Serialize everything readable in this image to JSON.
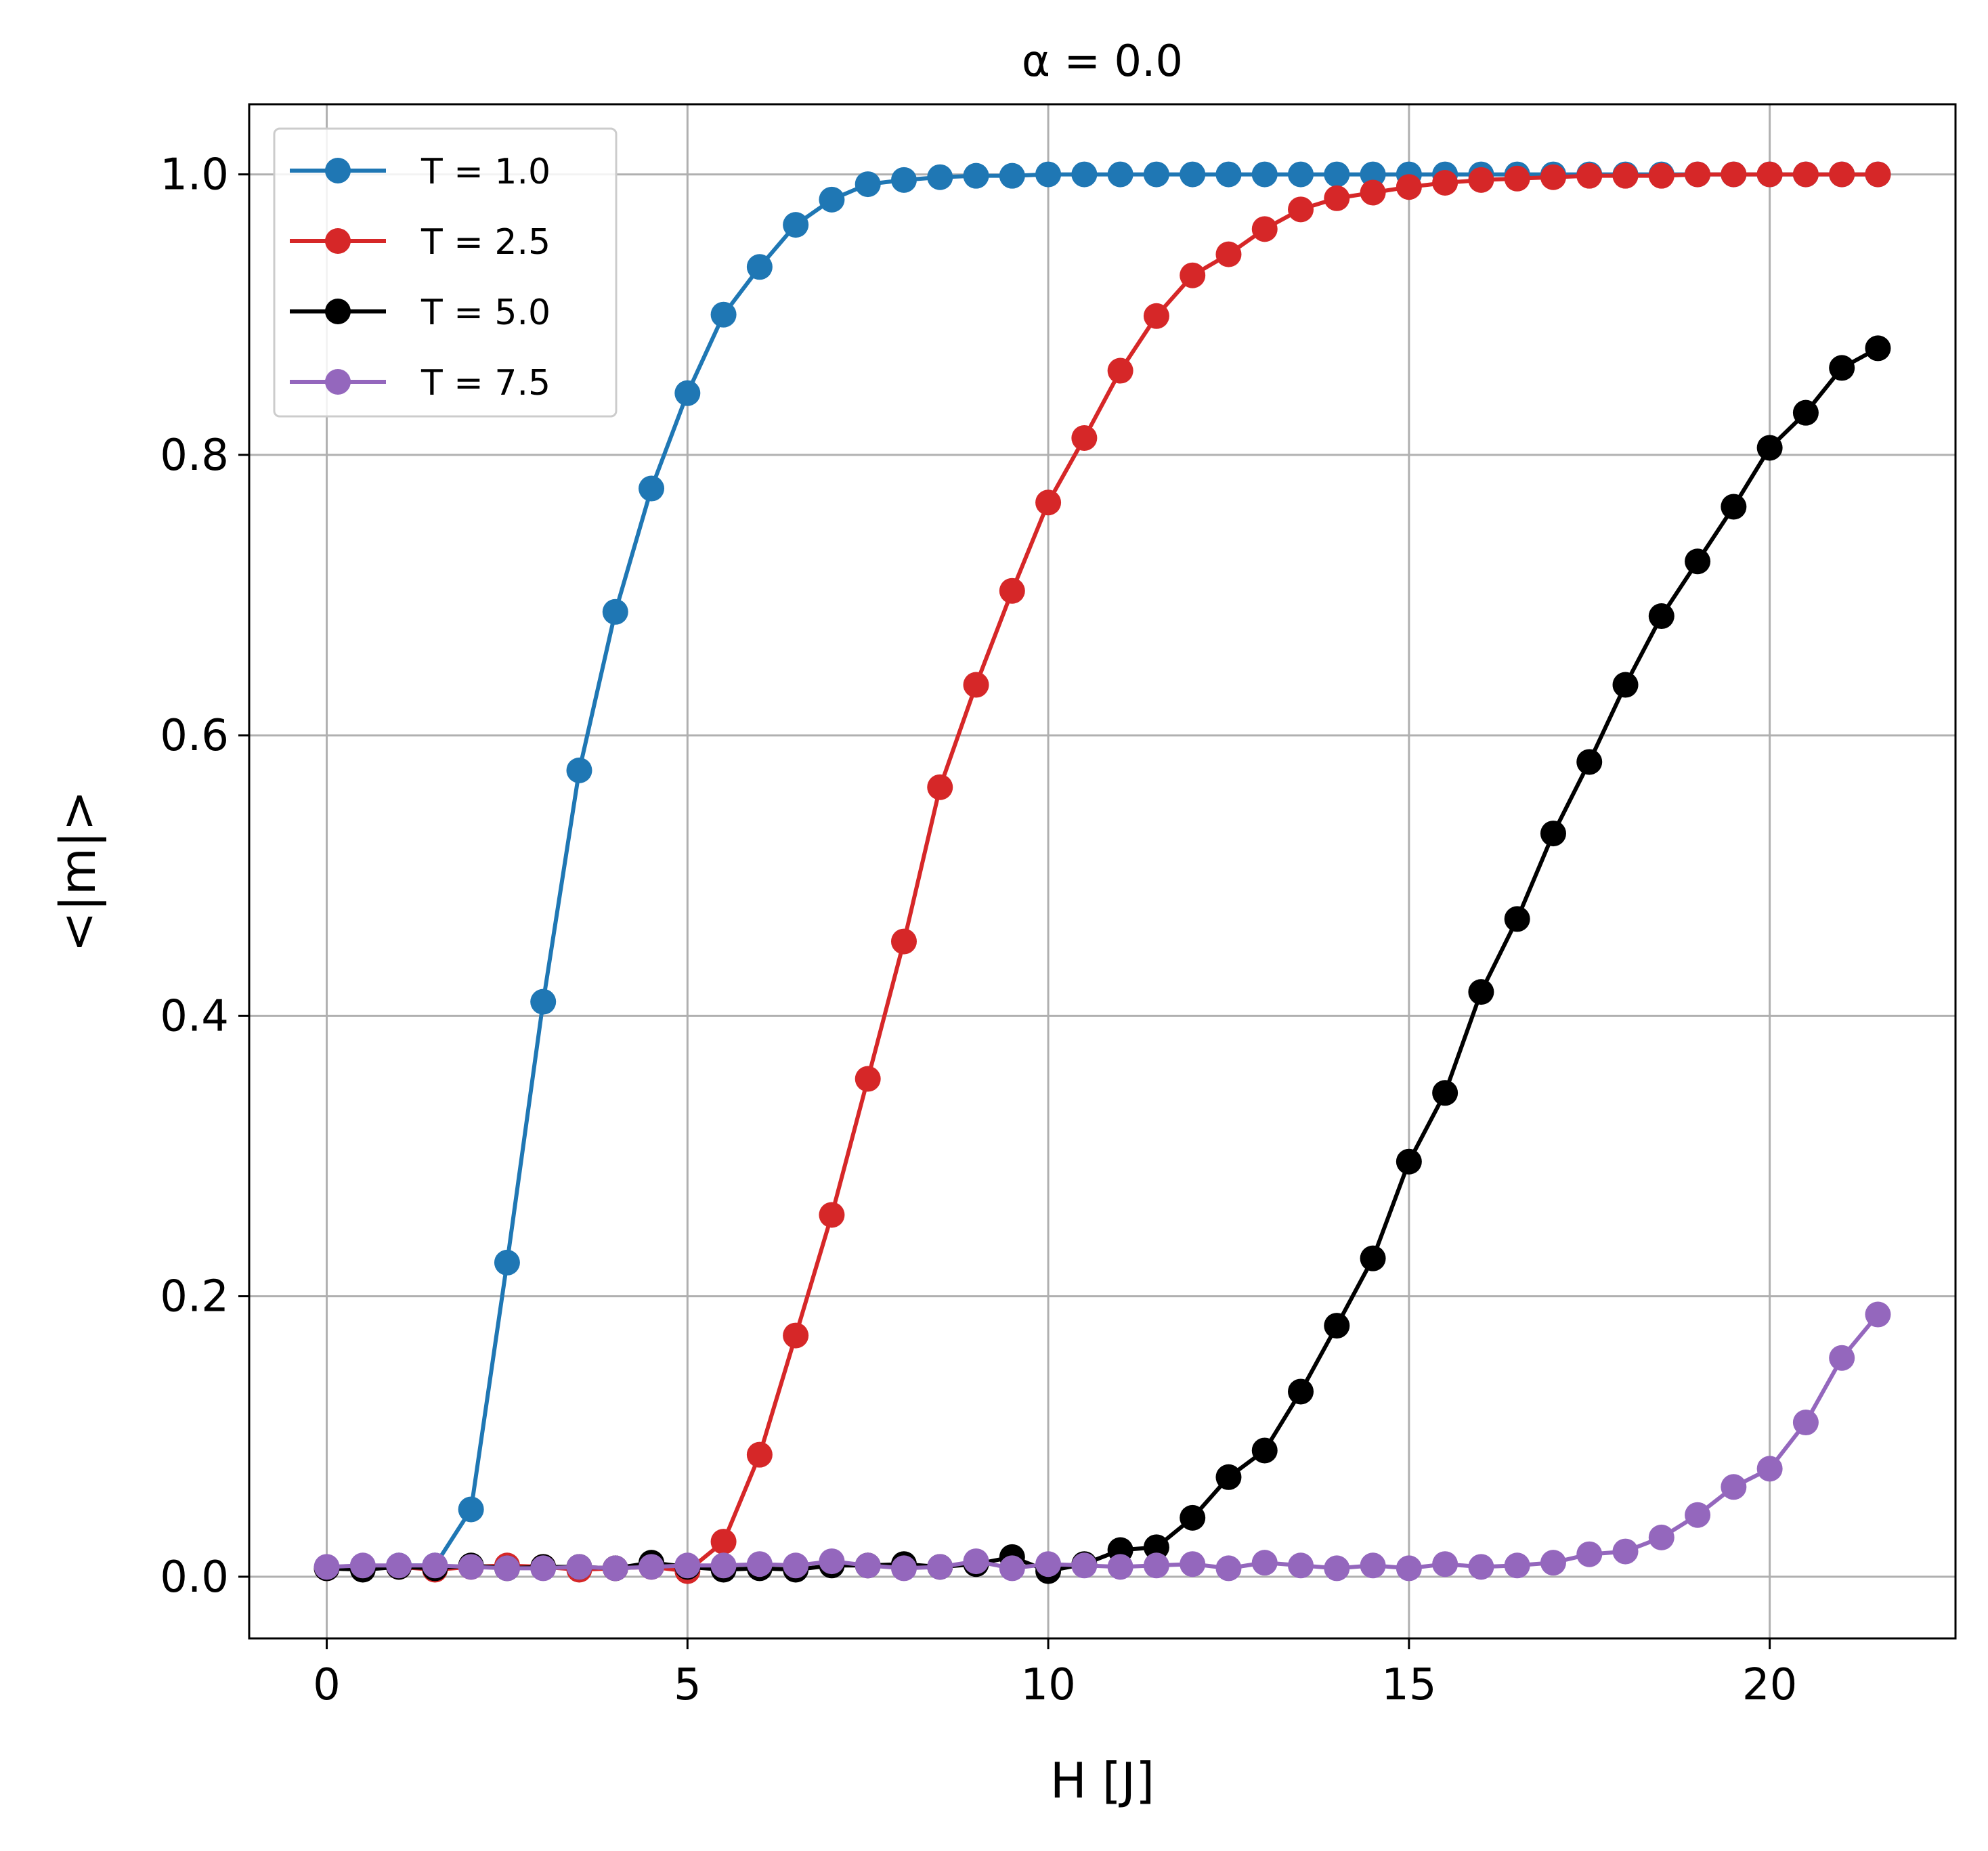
{
  "chart_data": {
    "type": "line",
    "title": "α = 0.0",
    "xlabel": "H [J]",
    "ylabel": "<|m|>",
    "xlim": [
      -1.075,
      22.575
    ],
    "ylim": [
      -0.044,
      1.05
    ],
    "xticks": [
      0,
      5,
      10,
      15,
      20
    ],
    "yticks": [
      0.0,
      0.2,
      0.4,
      0.6,
      0.8,
      1.0
    ],
    "xtick_labels": [
      "0",
      "5",
      "10",
      "15",
      "20"
    ],
    "ytick_labels": [
      "0.0",
      "0.2",
      "0.4",
      "0.6",
      "0.8",
      "1.0"
    ],
    "grid": true,
    "legend_position": "top-left",
    "marker": "circle",
    "x": [
      0,
      0.5,
      1,
      1.5,
      2,
      2.5,
      3,
      3.5,
      4,
      4.5,
      5,
      5.5,
      6,
      6.5,
      7,
      7.5,
      8,
      8.5,
      9,
      9.5,
      10,
      10.5,
      11,
      11.5,
      12,
      12.5,
      13,
      13.5,
      14,
      14.5,
      15,
      15.5,
      16,
      16.5,
      17,
      17.5,
      18,
      18.5,
      19,
      19.5,
      20,
      20.5,
      21,
      21.5
    ],
    "series": [
      {
        "name": "T = 1.0",
        "color": "#1f77b4",
        "values": [
          0.006,
          0.007,
          0.008,
          0.008,
          0.048,
          0.224,
          0.41,
          0.575,
          0.688,
          0.776,
          0.844,
          0.9,
          0.934,
          0.964,
          0.982,
          0.993,
          0.996,
          0.998,
          0.999,
          0.999,
          1.0,
          1.0,
          1.0,
          1.0,
          1.0,
          1.0,
          1.0,
          1.0,
          1.0,
          1.0,
          1.0,
          1.0,
          1.0,
          1.0,
          1.0,
          1.0,
          1.0,
          1.0,
          1.0,
          1.0,
          1.0,
          1.0,
          1.0,
          1.0
        ]
      },
      {
        "name": "T = 2.5",
        "color": "#d62728",
        "values": [
          0.006,
          0.006,
          0.007,
          0.005,
          0.007,
          0.008,
          0.007,
          0.005,
          0.006,
          0.007,
          0.004,
          0.025,
          0.087,
          0.172,
          0.258,
          0.355,
          0.453,
          0.563,
          0.636,
          0.703,
          0.766,
          0.812,
          0.86,
          0.899,
          0.928,
          0.943,
          0.961,
          0.975,
          0.983,
          0.987,
          0.991,
          0.994,
          0.996,
          0.997,
          0.998,
          0.999,
          0.999,
          0.999,
          1.0,
          1.0,
          1.0,
          1.0,
          1.0,
          1.0
        ]
      },
      {
        "name": "T = 5.0",
        "color": "#000000",
        "values": [
          0.006,
          0.005,
          0.007,
          0.006,
          0.008,
          0.006,
          0.007,
          0.007,
          0.006,
          0.01,
          0.007,
          0.005,
          0.006,
          0.005,
          0.008,
          0.008,
          0.009,
          0.007,
          0.009,
          0.014,
          0.004,
          0.009,
          0.019,
          0.021,
          0.042,
          0.071,
          0.09,
          0.132,
          0.179,
          0.227,
          0.296,
          0.345,
          0.417,
          0.469,
          0.53,
          0.581,
          0.636,
          0.685,
          0.724,
          0.763,
          0.805,
          0.83,
          0.862,
          0.876
        ]
      },
      {
        "name": "T = 7.5",
        "color": "#9467bd",
        "values": [
          0.007,
          0.008,
          0.008,
          0.008,
          0.007,
          0.006,
          0.006,
          0.007,
          0.006,
          0.007,
          0.008,
          0.008,
          0.009,
          0.008,
          0.011,
          0.008,
          0.006,
          0.007,
          0.011,
          0.006,
          0.009,
          0.008,
          0.007,
          0.008,
          0.009,
          0.006,
          0.01,
          0.008,
          0.006,
          0.008,
          0.006,
          0.009,
          0.007,
          0.008,
          0.01,
          0.016,
          0.018,
          0.028,
          0.044,
          0.064,
          0.077,
          0.11,
          0.156,
          0.187
        ]
      }
    ]
  }
}
